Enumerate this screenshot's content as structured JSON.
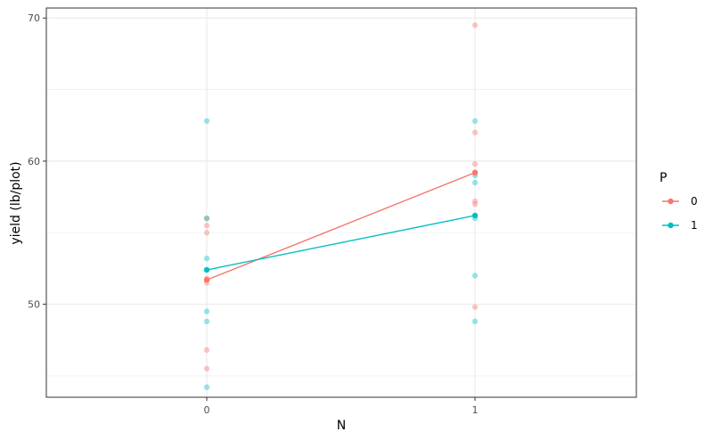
{
  "chart_data": {
    "type": "scatter",
    "xlabel": "N",
    "ylabel": "yield (lb/plot)",
    "x_categories": [
      "0",
      "1"
    ],
    "ylim": [
      43.5,
      70.7
    ],
    "y_ticks": [
      50,
      60,
      70
    ],
    "grid": true,
    "legend": {
      "title": "P",
      "placement": "right",
      "entries": [
        {
          "label": "0",
          "color": "#F8766D"
        },
        {
          "label": "1",
          "color": "#00BFC4"
        }
      ]
    },
    "series": [
      {
        "name": "0",
        "color": "#F8766D",
        "points": [
          {
            "x": "0",
            "y": 56.0
          },
          {
            "x": "0",
            "y": 55.5
          },
          {
            "x": "0",
            "y": 55.0
          },
          {
            "x": "0",
            "y": 51.8
          },
          {
            "x": "0",
            "y": 51.5
          },
          {
            "x": "0",
            "y": 46.8
          },
          {
            "x": "0",
            "y": 45.5
          },
          {
            "x": "1",
            "y": 69.5
          },
          {
            "x": "1",
            "y": 62.0
          },
          {
            "x": "1",
            "y": 59.8
          },
          {
            "x": "1",
            "y": 59.2
          },
          {
            "x": "1",
            "y": 57.2
          },
          {
            "x": "1",
            "y": 57.0
          },
          {
            "x": "1",
            "y": 49.8
          }
        ],
        "means": [
          {
            "x": "0",
            "y": 51.7
          },
          {
            "x": "1",
            "y": 59.2
          }
        ]
      },
      {
        "name": "1",
        "color": "#00BFC4",
        "points": [
          {
            "x": "0",
            "y": 62.8
          },
          {
            "x": "0",
            "y": 56.0
          },
          {
            "x": "0",
            "y": 53.2
          },
          {
            "x": "0",
            "y": 49.5
          },
          {
            "x": "0",
            "y": 48.8
          },
          {
            "x": "0",
            "y": 44.2
          },
          {
            "x": "1",
            "y": 62.8
          },
          {
            "x": "1",
            "y": 59.0
          },
          {
            "x": "1",
            "y": 58.5
          },
          {
            "x": "1",
            "y": 56.0
          },
          {
            "x": "1",
            "y": 52.0
          },
          {
            "x": "1",
            "y": 48.8
          }
        ],
        "means": [
          {
            "x": "0",
            "y": 52.4
          },
          {
            "x": "1",
            "y": 56.2
          }
        ]
      }
    ]
  }
}
